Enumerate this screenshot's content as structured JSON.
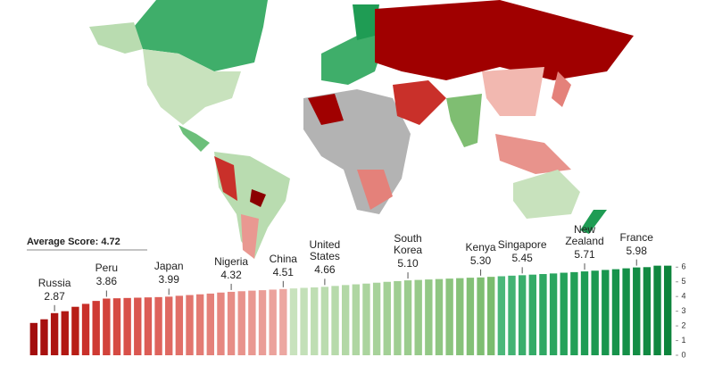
{
  "chart_data": {
    "type": "bar",
    "title": "Average Score: 4.72",
    "categories": [
      null,
      null,
      "Russia",
      null,
      null,
      null,
      null,
      "Peru",
      null,
      null,
      null,
      null,
      null,
      "Japan",
      null,
      null,
      null,
      null,
      null,
      "Nigeria",
      null,
      null,
      null,
      null,
      "China",
      null,
      null,
      null,
      "United States",
      null,
      null,
      null,
      null,
      null,
      null,
      null,
      "South Korea",
      null,
      null,
      null,
      null,
      null,
      null,
      "Kenya",
      null,
      null,
      null,
      "Singapore",
      null,
      null,
      null,
      null,
      null,
      "New Zealand",
      null,
      null,
      null,
      null,
      "France",
      null,
      null,
      null
    ],
    "values": [
      2.2,
      2.45,
      2.87,
      3.0,
      3.3,
      3.5,
      3.7,
      3.86,
      3.88,
      3.9,
      3.92,
      3.94,
      3.96,
      3.99,
      4.05,
      4.1,
      4.15,
      4.2,
      4.27,
      4.32,
      4.36,
      4.4,
      4.43,
      4.47,
      4.51,
      4.55,
      4.59,
      4.62,
      4.66,
      4.72,
      4.78,
      4.83,
      4.88,
      4.94,
      5.0,
      5.05,
      5.1,
      5.13,
      5.16,
      5.19,
      5.22,
      5.25,
      5.28,
      5.3,
      5.34,
      5.38,
      5.42,
      5.45,
      5.49,
      5.53,
      5.57,
      5.62,
      5.66,
      5.71,
      5.76,
      5.81,
      5.86,
      5.92,
      5.98,
      6.0,
      6.1,
      6.1
    ],
    "value_labels": [
      null,
      null,
      "2.87",
      null,
      null,
      null,
      null,
      "3.86",
      null,
      null,
      null,
      null,
      null,
      "3.99",
      null,
      null,
      null,
      null,
      null,
      "4.32",
      null,
      null,
      null,
      null,
      "4.51",
      null,
      null,
      null,
      "4.66",
      null,
      null,
      null,
      null,
      null,
      null,
      null,
      "5.10",
      null,
      null,
      null,
      null,
      null,
      null,
      "5.30",
      null,
      null,
      null,
      "5.45",
      null,
      null,
      null,
      null,
      null,
      "5.71",
      null,
      null,
      null,
      null,
      "5.98",
      null,
      null,
      null
    ],
    "colors": [
      "#a30d0d",
      "#a8100f",
      "#ad1411",
      "#b21813",
      "#b81e16",
      "#c9302a",
      "#cf3a33",
      "#d2433b",
      "#d54a42",
      "#d85049",
      "#da5750",
      "#dc5d56",
      "#de635c",
      "#df6962",
      "#e16f68",
      "#e2756e",
      "#e37b74",
      "#e4817a",
      "#e68780",
      "#e78d86",
      "#e8938c",
      "#e99891",
      "#ea9d97",
      "#eba29c",
      "#eca7a1",
      "#c8e2bd",
      "#c3e0b8",
      "#bfdeb3",
      "#bbdcaf",
      "#b7daab",
      "#b3d8a6",
      "#afd6a2",
      "#abd49e",
      "#a7d29a",
      "#a3d096",
      "#9fce92",
      "#9bcc8e",
      "#97ca8a",
      "#93c886",
      "#8fc682",
      "#8bc47e",
      "#87c27a",
      "#83c076",
      "#7fbe72",
      "#7bbc6e",
      "#4cb87a",
      "#43b373",
      "#3aae6c",
      "#34ab67",
      "#2fa863",
      "#2aa55f",
      "#26a25b",
      "#229f57",
      "#1f9c54",
      "#1c9951",
      "#19964e",
      "#17934b",
      "#159048",
      "#138d45",
      "#118a42",
      "#0f873f",
      "#0d843c"
    ],
    "ylim": [
      0,
      6.2
    ],
    "yticks": [
      0,
      1,
      2,
      3,
      4,
      5,
      6
    ]
  }
}
